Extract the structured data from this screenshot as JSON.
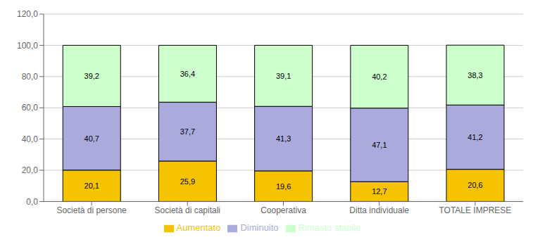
{
  "chart_data": {
    "type": "bar",
    "stacked": true,
    "categories": [
      "Società di persone",
      "Società di capitali",
      "Cooperativa",
      "Ditta individuale",
      "TOTALE IMPRESE"
    ],
    "series": [
      {
        "name": "Aumentato",
        "color": "#F5C300",
        "values": [
          20.1,
          25.9,
          19.6,
          12.7,
          20.6
        ],
        "value_labels": [
          "20,1",
          "25,9",
          "19,6",
          "12,7",
          "20,6"
        ]
      },
      {
        "name": "Diminuito",
        "color": "#AAAADD",
        "values": [
          40.7,
          37.7,
          41.3,
          47.1,
          41.2
        ],
        "value_labels": [
          "40,7",
          "37,7",
          "41,3",
          "47,1",
          "41,2"
        ]
      },
      {
        "name": "Rimasto stabile",
        "color": "#CCFFCC",
        "values": [
          39.2,
          36.4,
          39.1,
          40.2,
          38.3
        ],
        "value_labels": [
          "39,2",
          "36,4",
          "39,1",
          "40,2",
          "38,3"
        ]
      }
    ],
    "ylim": [
      0,
      120
    ],
    "yticks": [
      {
        "value": 0,
        "label": "0,0"
      },
      {
        "value": 20,
        "label": "20,0"
      },
      {
        "value": 40,
        "label": "40,0"
      },
      {
        "value": 60,
        "label": "60,0"
      },
      {
        "value": 80,
        "label": "80,0"
      },
      {
        "value": 100,
        "label": "100,0"
      },
      {
        "value": 120,
        "label": "120,0"
      }
    ],
    "grid": true,
    "legend": "bottom",
    "data_labels": true
  }
}
